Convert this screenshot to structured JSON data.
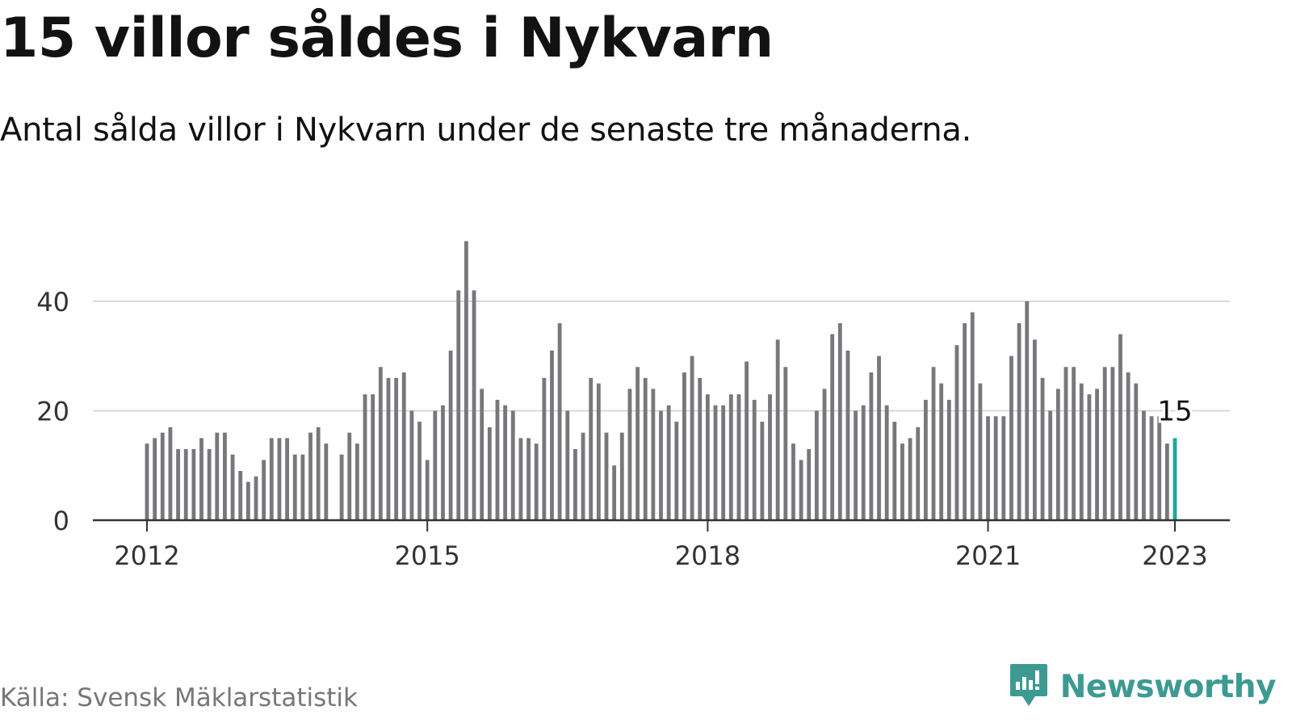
{
  "title": "15 villor såldes i Nykvarn",
  "subtitle": "Antal sålda villor i Nykvarn under de senaste tre månaderna.",
  "source": "Källa: Svensk Mäklarstatistik",
  "brand": {
    "name": "Newsworthy",
    "icon": "newsworthy-logo-icon",
    "color": "#3d9a93"
  },
  "colors": {
    "bar": "#77777c",
    "highlight": "#1fa898",
    "grid": "#d9d9d9",
    "axis": "#333333",
    "text": "#333333"
  },
  "chart_data": {
    "type": "bar",
    "x_unit": "month",
    "x_start": "2012-01",
    "x_end": "2023-01",
    "ylim": [
      0,
      50
    ],
    "y_ticks": [
      0,
      20,
      40
    ],
    "x_ticks": [
      "2012",
      "2015",
      "2018",
      "2021",
      "2023"
    ],
    "grid": true,
    "highlight_label": "15",
    "values": [
      14,
      15,
      16,
      17,
      13,
      13,
      13,
      15,
      13,
      16,
      16,
      12,
      9,
      7,
      8,
      11,
      15,
      15,
      15,
      12,
      12,
      16,
      17,
      14,
      null,
      12,
      16,
      14,
      23,
      23,
      28,
      26,
      26,
      27,
      20,
      18,
      11,
      20,
      21,
      31,
      42,
      51,
      42,
      24,
      17,
      22,
      21,
      20,
      15,
      15,
      14,
      26,
      31,
      36,
      20,
      13,
      16,
      26,
      25,
      16,
      10,
      16,
      24,
      28,
      26,
      24,
      20,
      21,
      18,
      27,
      30,
      26,
      23,
      21,
      21,
      23,
      23,
      29,
      22,
      18,
      23,
      33,
      28,
      14,
      11,
      13,
      20,
      24,
      34,
      36,
      31,
      20,
      21,
      27,
      30,
      21,
      18,
      14,
      15,
      17,
      22,
      28,
      25,
      22,
      32,
      36,
      38,
      25,
      19,
      19,
      19,
      30,
      36,
      40,
      33,
      26,
      20,
      24,
      28,
      28,
      25,
      23,
      24,
      28,
      28,
      34,
      27,
      25,
      20,
      19,
      19,
      14,
      15
    ]
  }
}
